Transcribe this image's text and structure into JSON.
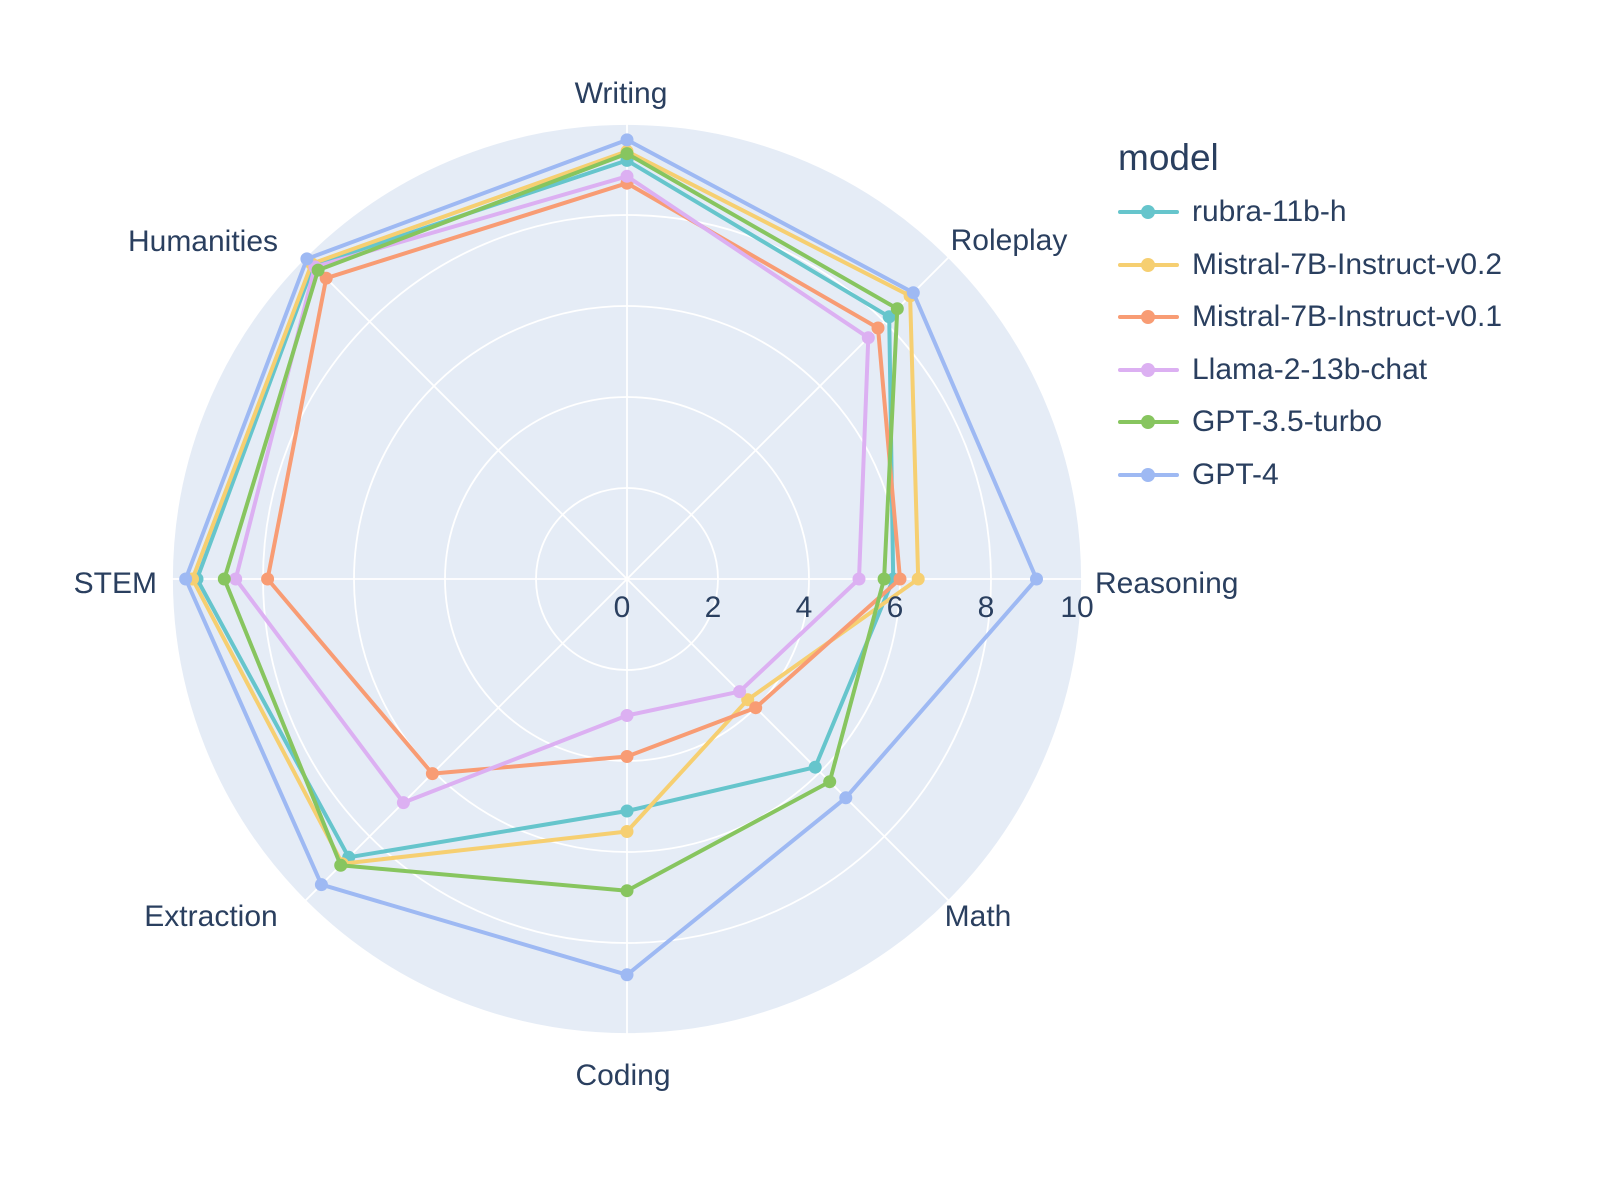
{
  "chart_data": {
    "type": "radar",
    "legend_title": "model",
    "categories": [
      "Writing",
      "Roleplay",
      "Reasoning",
      "Math",
      "Coding",
      "Extraction",
      "STEM",
      "Humanities"
    ],
    "radial_ticks": [
      0,
      2,
      4,
      6,
      8,
      10
    ],
    "radial_range": [
      0,
      10
    ],
    "grid": true,
    "legend_position": "right",
    "series": [
      {
        "name": "rubra-11b-h",
        "color": "#66C5CC",
        "values": [
          9.2,
          8.15,
          5.85,
          5.85,
          5.1,
          8.65,
          9.45,
          9.75
        ]
      },
      {
        "name": "Mistral-7B-Instruct-v0.2",
        "color": "#F6CF71",
        "values": [
          9.4,
          8.8,
          6.4,
          3.75,
          5.55,
          8.85,
          9.55,
          9.8
        ]
      },
      {
        "name": "Mistral-7B-Instruct-v0.1",
        "color": "#F89C74",
        "values": [
          8.7,
          7.8,
          6.0,
          4.0,
          3.9,
          6.05,
          7.9,
          9.35
        ]
      },
      {
        "name": "Llama-2-13b-chat",
        "color": "#DCB0F2",
        "values": [
          8.85,
          7.5,
          5.1,
          3.5,
          3.0,
          6.95,
          8.6,
          9.7
        ]
      },
      {
        "name": "GPT-3.5-turbo",
        "color": "#87C55F",
        "values": [
          9.35,
          8.4,
          5.65,
          6.3,
          6.85,
          8.9,
          8.85,
          9.6
        ]
      },
      {
        "name": "GPT-4",
        "color": "#9EB9F3",
        "values": [
          9.65,
          8.9,
          9.0,
          6.8,
          8.7,
          9.5,
          9.7,
          9.95
        ]
      }
    ],
    "colors": {
      "plot_background": "#E5ECF6",
      "gridline": "#FFFFFF",
      "text": "#2A3F5F",
      "page_background": "#FFFFFF"
    }
  }
}
